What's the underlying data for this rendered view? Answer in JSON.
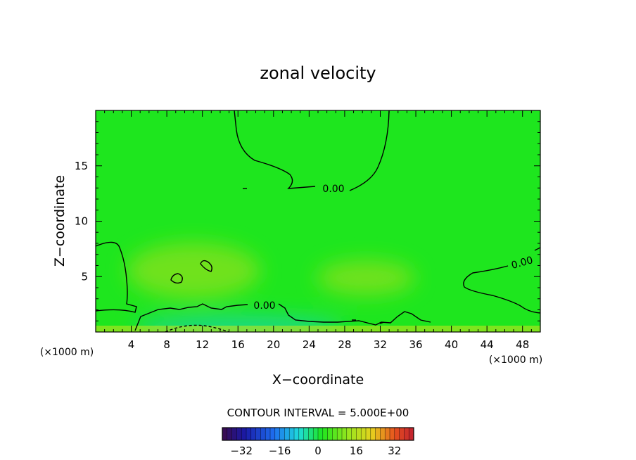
{
  "chart_data": {
    "type": "heatmap",
    "title": "zonal velocity",
    "xlabel": "X−coordinate",
    "ylabel": "Z−coordinate",
    "x_unit_left": "(×1000 m)",
    "x_unit_right": "(×1000 m)",
    "xlim": [
      0,
      50
    ],
    "ylim": [
      0,
      20
    ],
    "x_ticks": [
      4,
      8,
      12,
      16,
      20,
      24,
      28,
      32,
      36,
      40,
      44,
      48
    ],
    "y_ticks": [
      5,
      10,
      15
    ],
    "contour_labels": [
      "0.00",
      "0.00",
      "0.00"
    ],
    "contour_interval_text": "CONTOUR INTERVAL = 5.000E+00",
    "colorbar": {
      "min": -40,
      "max": 40,
      "tick_values": [
        -32,
        -16,
        0,
        16,
        32
      ],
      "tick_labels": [
        "−32",
        "−16",
        "0",
        "16",
        "32"
      ]
    },
    "colors": {
      "field_background": "#1ee61e",
      "positive_tint": "#6fe21e",
      "negative_tint": "#1ed98a"
    }
  }
}
